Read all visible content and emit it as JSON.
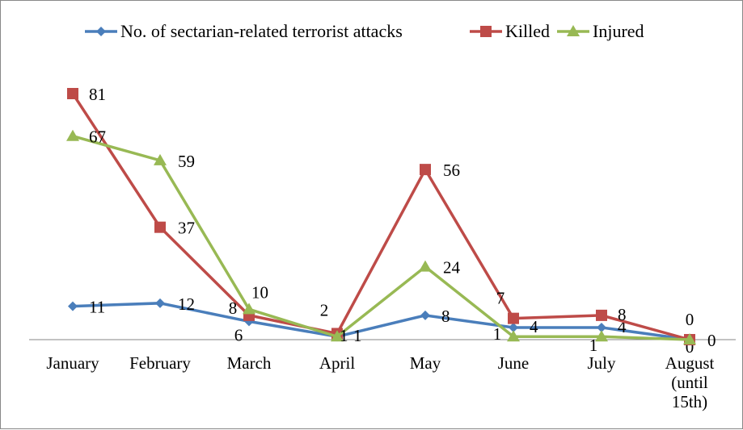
{
  "chart_data": {
    "type": "line",
    "categories": [
      "January",
      "February",
      "March",
      "April",
      "May",
      "June",
      "July",
      "August (until 15th)"
    ],
    "category_lines": [
      [
        "January"
      ],
      [
        "February"
      ],
      [
        "March"
      ],
      [
        "April"
      ],
      [
        "May"
      ],
      [
        "June"
      ],
      [
        "July"
      ],
      [
        "August",
        "(until",
        "15th)"
      ]
    ],
    "series": [
      {
        "name": "No. of sectarian-related terrorist attacks",
        "values": [
          11,
          12,
          6,
          1,
          8,
          4,
          4,
          0
        ],
        "color": "#4a7ebb",
        "marker": "diamond"
      },
      {
        "name": "Killed",
        "values": [
          81,
          37,
          8,
          2,
          56,
          7,
          8,
          0
        ],
        "color": "#be4b48",
        "marker": "square"
      },
      {
        "name": "Injured",
        "values": [
          67,
          59,
          10,
          1,
          24,
          1,
          1,
          0
        ],
        "color": "#98b954",
        "marker": "triangle"
      }
    ],
    "ylim": [
      0,
      85
    ],
    "grid": false,
    "legend_position": "top"
  }
}
